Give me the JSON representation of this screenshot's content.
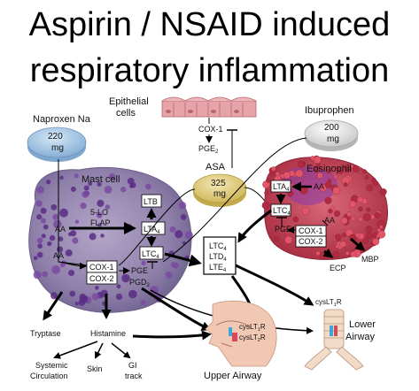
{
  "title": {
    "line1": "Aspirin / NSAID induced",
    "line2": "respiratory inflammation"
  },
  "drugs": {
    "naproxen": {
      "name": "Naproxen Na",
      "dose": "220",
      "unit": "mg"
    },
    "ibuprofen": {
      "name": "Ibuprophen",
      "dose": "200",
      "unit": "mg"
    },
    "asa": {
      "name": "ASA",
      "dose": "325",
      "unit": "mg"
    }
  },
  "epithelial": {
    "label_line1": "Epithelial",
    "label_line2": "cells",
    "cox1": "COX-1",
    "pge2": "PGE",
    "pge2_sub": "2"
  },
  "mast_cell": {
    "label": "Mast cell",
    "five_lo": "5-LO",
    "flap": "FLAP",
    "aa": "AA",
    "ltb": "LTB",
    "lta": "LTA",
    "lta_sub": "4",
    "ltc": "LTC",
    "ltc_sub": "4",
    "cox1": "COX-1",
    "cox2": "COX-2",
    "pge": "PGE",
    "pgd": "PGD",
    "pgd_sub": "2"
  },
  "eosinophil": {
    "label": "Eosinophil",
    "lta": "LTA",
    "lta_sub": "4",
    "ltc": "LTC",
    "ltc_sub": "4",
    "aa_top": "AA",
    "aa_bottom": "AA",
    "pge": "PGE",
    "cox1": "COX-1",
    "cox2": "COX-2"
  },
  "leukotriene_box": {
    "ltc": "LTC",
    "ltd": "LTD",
    "lte": "LTE",
    "sub": "4"
  },
  "mediators": {
    "mbp": "MBP",
    "ecp": "ECP",
    "tryptase": "Tryptase",
    "histamine": "Histamine"
  },
  "effects": {
    "systemic_line1": "Systemic",
    "systemic_line2": "Circulation",
    "skin": "Skin",
    "gi_line1": "GI",
    "gi_line2": "track"
  },
  "upper_airway": {
    "label": "Upper Airway",
    "r1": "cysLT",
    "r1_sub": "1",
    "r2": "cysLT",
    "r2_sub": "2",
    "r_suffix": "R"
  },
  "lower_airway": {
    "label_line1": "Lower",
    "label_line2": "Airway",
    "receptor": "cysLT",
    "receptor_sub": "1",
    "receptor_suffix": "R"
  },
  "colors": {
    "mast_cell": "#8e7ea8",
    "granule": "#5b2d85",
    "eosinophil": "#c23a4c",
    "eos_nucleus": "#8a3aa8",
    "naproxen_pill": "#a9c9e6",
    "asa_pill": "#e3d07a",
    "ibuprofen_pill": "#e6e6e6",
    "epithelium": "#e6a3a8"
  }
}
